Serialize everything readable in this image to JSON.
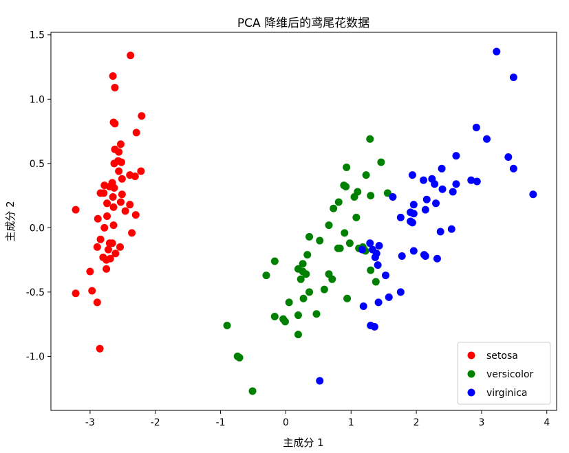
{
  "chart_data": {
    "type": "scatter",
    "title": "PCA 降维后的鸢尾花数据",
    "xlabel": "主成分 1",
    "ylabel": "主成分 2",
    "xlim": [
      -3.6,
      4.15
    ],
    "ylim": [
      -1.42,
      1.52
    ],
    "xticks": [
      -3,
      -2,
      -1,
      0,
      1,
      2,
      3,
      4
    ],
    "xtick_labels": [
      "-3",
      "-2",
      "-1",
      "0",
      "1",
      "2",
      "3",
      "4"
    ],
    "yticks": [
      1.5,
      1.0,
      0.5,
      0.0,
      -0.5,
      -1.0
    ],
    "ytick_labels": [
      "1.5",
      "1.0",
      "0.5",
      "0.0",
      "-0.5",
      "-1.0"
    ],
    "grid": false,
    "legend_position": "bottom-right",
    "series": [
      {
        "name": "setosa",
        "color": "#ff0000",
        "points": [
          [
            -2.38,
            1.34
          ],
          [
            -2.65,
            1.18
          ],
          [
            -2.62,
            1.09
          ],
          [
            -2.21,
            0.87
          ],
          [
            -2.64,
            0.82
          ],
          [
            -2.62,
            0.81
          ],
          [
            -2.29,
            0.74
          ],
          [
            -2.53,
            0.65
          ],
          [
            -2.62,
            0.61
          ],
          [
            -2.56,
            0.59
          ],
          [
            -2.57,
            0.52
          ],
          [
            -2.52,
            0.51
          ],
          [
            -2.63,
            0.5
          ],
          [
            -2.22,
            0.44
          ],
          [
            -2.56,
            0.44
          ],
          [
            -2.39,
            0.41
          ],
          [
            -2.31,
            0.4
          ],
          [
            -2.51,
            0.38
          ],
          [
            -2.66,
            0.35
          ],
          [
            -2.78,
            0.33
          ],
          [
            -2.7,
            0.32
          ],
          [
            -2.63,
            0.31
          ],
          [
            -2.84,
            0.27
          ],
          [
            -2.79,
            0.27
          ],
          [
            -2.51,
            0.26
          ],
          [
            -2.65,
            0.24
          ],
          [
            -2.53,
            0.2
          ],
          [
            -2.74,
            0.19
          ],
          [
            -2.39,
            0.18
          ],
          [
            -2.64,
            0.16
          ],
          [
            -2.46,
            0.13
          ],
          [
            -3.22,
            0.14
          ],
          [
            -2.3,
            0.1
          ],
          [
            -2.74,
            0.09
          ],
          [
            -2.88,
            0.07
          ],
          [
            -2.64,
            0.02
          ],
          [
            -2.78,
            0.0
          ],
          [
            -2.36,
            -0.04
          ],
          [
            -2.84,
            -0.09
          ],
          [
            -2.66,
            -0.12
          ],
          [
            -2.7,
            -0.12
          ],
          [
            -2.89,
            -0.15
          ],
          [
            -2.54,
            -0.15
          ],
          [
            -2.72,
            -0.17
          ],
          [
            -2.61,
            -0.2
          ],
          [
            -2.8,
            -0.23
          ],
          [
            -2.75,
            -0.25
          ],
          [
            -2.69,
            -0.24
          ],
          [
            -2.75,
            -0.32
          ],
          [
            -3.0,
            -0.34
          ],
          [
            -2.97,
            -0.49
          ],
          [
            -3.22,
            -0.51
          ],
          [
            -2.89,
            -0.58
          ],
          [
            -2.85,
            -0.94
          ]
        ]
      },
      {
        "name": "versicolor",
        "color": "#008000",
        "points": [
          [
            1.29,
            0.69
          ],
          [
            0.93,
            0.47
          ],
          [
            1.46,
            0.51
          ],
          [
            1.23,
            0.41
          ],
          [
            0.92,
            0.32
          ],
          [
            0.89,
            0.33
          ],
          [
            1.1,
            0.28
          ],
          [
            1.56,
            0.27
          ],
          [
            1.3,
            0.25
          ],
          [
            1.05,
            0.24
          ],
          [
            0.81,
            0.2
          ],
          [
            0.73,
            0.15
          ],
          [
            0.66,
            0.02
          ],
          [
            1.08,
            0.08
          ],
          [
            0.9,
            -0.04
          ],
          [
            0.52,
            -0.1
          ],
          [
            0.36,
            -0.07
          ],
          [
            0.98,
            -0.12
          ],
          [
            0.8,
            -0.16
          ],
          [
            1.22,
            -0.18
          ],
          [
            1.3,
            -0.33
          ],
          [
            1.38,
            -0.42
          ],
          [
            0.33,
            -0.21
          ],
          [
            0.26,
            -0.28
          ],
          [
            0.19,
            -0.32
          ],
          [
            0.26,
            -0.34
          ],
          [
            0.31,
            -0.36
          ],
          [
            0.23,
            -0.4
          ],
          [
            0.66,
            -0.36
          ],
          [
            0.71,
            -0.4
          ],
          [
            0.59,
            -0.48
          ],
          [
            -0.17,
            -0.26
          ],
          [
            -0.3,
            -0.37
          ],
          [
            0.36,
            -0.5
          ],
          [
            0.27,
            -0.55
          ],
          [
            0.94,
            -0.55
          ],
          [
            0.05,
            -0.58
          ],
          [
            0.19,
            -0.68
          ],
          [
            0.47,
            -0.67
          ],
          [
            -0.17,
            -0.69
          ],
          [
            -0.04,
            -0.71
          ],
          [
            -0.01,
            -0.73
          ],
          [
            -0.9,
            -0.76
          ],
          [
            0.19,
            -0.83
          ],
          [
            -0.74,
            -1.0
          ],
          [
            -0.71,
            -1.01
          ],
          [
            -0.51,
            -1.27
          ],
          [
            1.12,
            -0.16
          ],
          [
            1.18,
            -0.15
          ],
          [
            0.83,
            -0.16
          ]
        ]
      },
      {
        "name": "virginica",
        "color": "#0000ff",
        "points": [
          [
            3.23,
            1.37
          ],
          [
            3.49,
            1.17
          ],
          [
            2.92,
            0.78
          ],
          [
            3.08,
            0.69
          ],
          [
            2.61,
            0.56
          ],
          [
            3.41,
            0.55
          ],
          [
            3.49,
            0.46
          ],
          [
            2.39,
            0.46
          ],
          [
            2.84,
            0.37
          ],
          [
            2.93,
            0.36
          ],
          [
            2.24,
            0.38
          ],
          [
            2.11,
            0.37
          ],
          [
            1.94,
            0.41
          ],
          [
            2.61,
            0.34
          ],
          [
            2.4,
            0.3
          ],
          [
            2.56,
            0.28
          ],
          [
            2.28,
            0.34
          ],
          [
            2.16,
            0.22
          ],
          [
            1.96,
            0.18
          ],
          [
            2.3,
            0.19
          ],
          [
            2.14,
            0.14
          ],
          [
            1.64,
            0.24
          ],
          [
            3.79,
            0.26
          ],
          [
            1.96,
            0.11
          ],
          [
            1.91,
            0.05
          ],
          [
            1.94,
            0.04
          ],
          [
            1.76,
            0.08
          ],
          [
            2.54,
            -0.01
          ],
          [
            2.37,
            -0.03
          ],
          [
            1.43,
            -0.14
          ],
          [
            1.29,
            -0.12
          ],
          [
            1.39,
            -0.2
          ],
          [
            1.33,
            -0.17
          ],
          [
            1.17,
            -0.17
          ],
          [
            1.78,
            -0.22
          ],
          [
            1.96,
            -0.18
          ],
          [
            2.12,
            -0.21
          ],
          [
            2.14,
            -0.22
          ],
          [
            2.32,
            -0.24
          ],
          [
            1.41,
            -0.29
          ],
          [
            1.53,
            -0.37
          ],
          [
            1.76,
            -0.5
          ],
          [
            1.58,
            -0.54
          ],
          [
            1.42,
            -0.58
          ],
          [
            1.19,
            -0.61
          ],
          [
            1.3,
            -0.76
          ],
          [
            1.36,
            -0.77
          ],
          [
            0.52,
            -1.19
          ],
          [
            1.37,
            -0.23
          ],
          [
            1.91,
            0.12
          ]
        ]
      }
    ]
  }
}
